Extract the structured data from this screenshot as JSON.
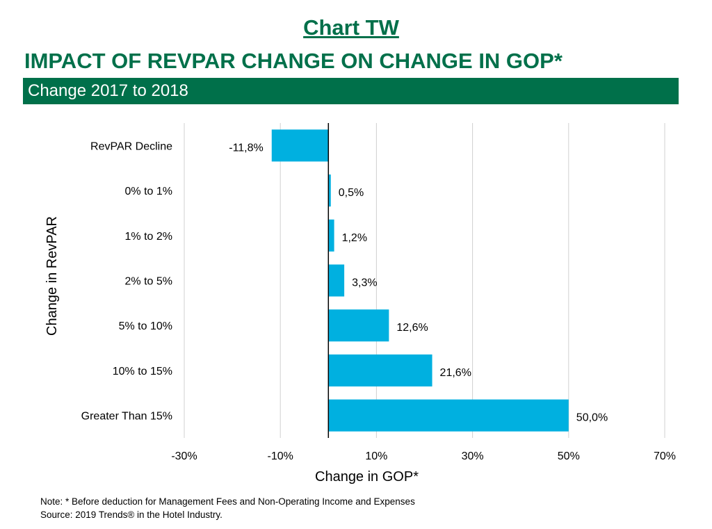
{
  "header": {
    "chart_label": "Chart TW",
    "title": "IMPACT OF REVPAR CHANGE ON CHANGE IN GOP*",
    "subtitle": "Change 2017 to 2018"
  },
  "colors": {
    "brand": "#00704A",
    "bar": "#00B0E0"
  },
  "chart_data": {
    "type": "bar",
    "orientation": "horizontal",
    "categories": [
      "RevPAR Decline",
      "0% to 1%",
      "1% to 2%",
      "2% to 5%",
      "5% to 10%",
      "10% to 15%",
      "Greater Than 15%"
    ],
    "values": [
      -11.8,
      0.5,
      1.2,
      3.3,
      12.6,
      21.6,
      50.0
    ],
    "data_labels": [
      "-11,8%",
      "0,5%",
      "1,2%",
      "3,3%",
      "12,6%",
      "21,6%",
      "50,0%"
    ],
    "xlabel": "Change in GOP*",
    "ylabel": "Change in RevPAR",
    "xlim": [
      -30,
      70
    ],
    "xticks": [
      -30,
      -10,
      10,
      30,
      50,
      70
    ],
    "xtick_labels": [
      "-30%",
      "-10%",
      "10%",
      "30%",
      "50%",
      "70%"
    ],
    "grid": "vertical",
    "legend": "none"
  },
  "notes": {
    "line1": "Note: * Before deduction for Management Fees and Non-Operating Income and Expenses",
    "line2": "Source: 2019 Trends® in the Hotel Industry."
  }
}
